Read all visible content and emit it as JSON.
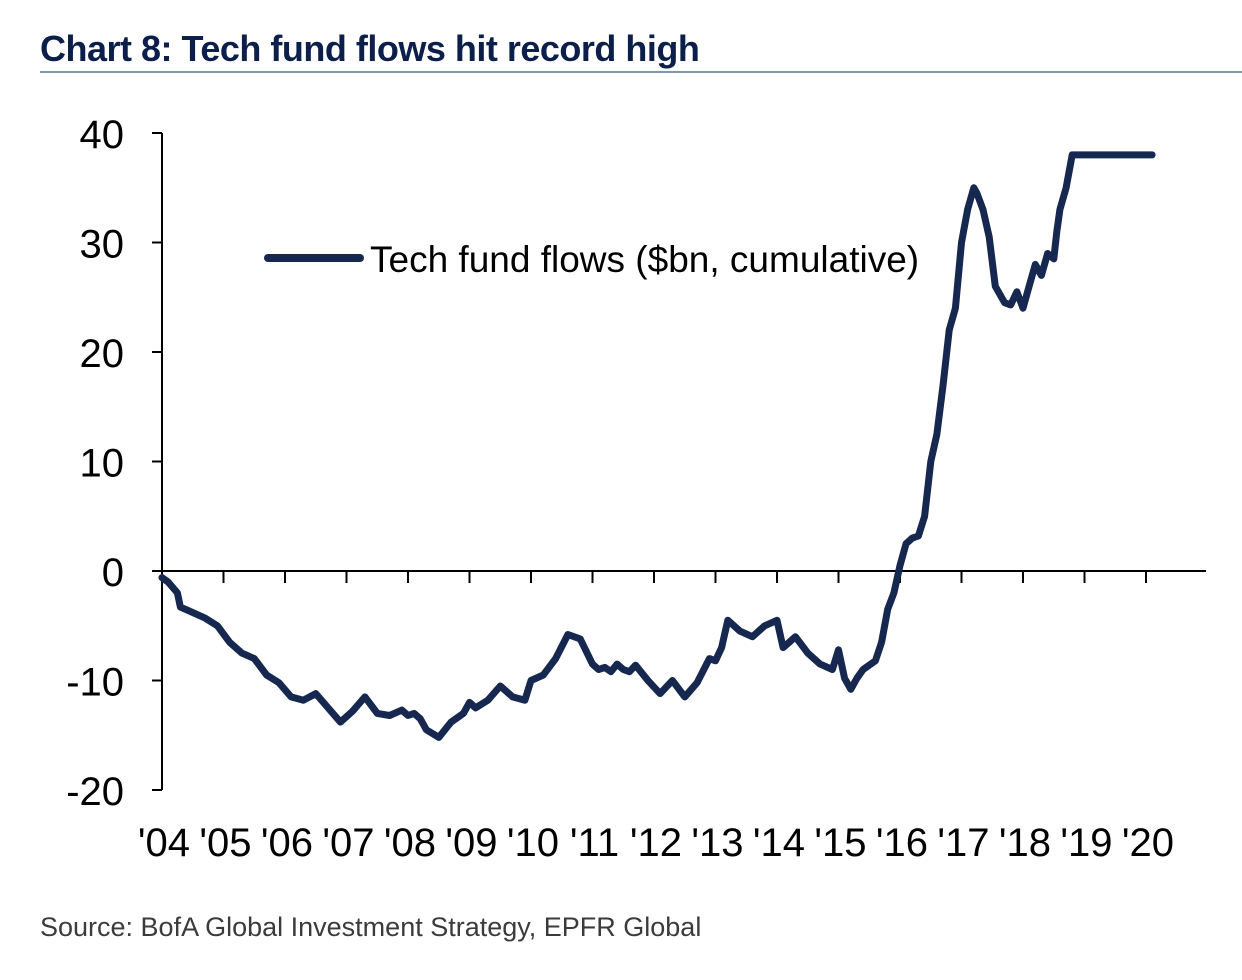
{
  "header": {
    "title": "Chart 8: Tech fund flows hit record high"
  },
  "footer": {
    "source": "Source: BofA Global Investment Strategy, EPFR Global"
  },
  "chart_data": {
    "type": "line",
    "title": "Chart 8: Tech fund flows hit record high",
    "xlabel": "",
    "ylabel": "",
    "ylim": [
      -20,
      40
    ],
    "xlim": [
      2004.0,
      2021.0
    ],
    "yticks": [
      "40",
      "30",
      "20",
      "10",
      "0",
      "-10",
      "-20"
    ],
    "xticks": [
      "'04",
      "'05",
      "'06",
      "'07",
      "'08",
      "'09",
      "'10",
      "'11",
      "'12",
      "'13",
      "'14",
      "'15",
      "'16",
      "'17",
      "'18",
      "'19",
      "'20"
    ],
    "legend_position": "top-left",
    "grid": false,
    "line_color": "#16284f",
    "series": [
      {
        "name": "Tech fund flows ($bn, cumulative)",
        "x": [
          2004.0,
          2004.1,
          2004.25,
          2004.3,
          2004.5,
          2004.7,
          2004.9,
          2005.1,
          2005.3,
          2005.5,
          2005.7,
          2005.9,
          2006.1,
          2006.3,
          2006.5,
          2006.7,
          2006.9,
          2007.1,
          2007.3,
          2007.5,
          2007.7,
          2007.9,
          2008.0,
          2008.1,
          2008.2,
          2008.3,
          2008.5,
          2008.7,
          2008.9,
          2009.0,
          2009.1,
          2009.3,
          2009.5,
          2009.7,
          2009.9,
          2010.0,
          2010.2,
          2010.4,
          2010.6,
          2010.8,
          2011.0,
          2011.1,
          2011.2,
          2011.3,
          2011.4,
          2011.5,
          2011.6,
          2011.7,
          2011.9,
          2012.1,
          2012.3,
          2012.5,
          2012.7,
          2012.9,
          2013.0,
          2013.1,
          2013.2,
          2013.4,
          2013.6,
          2013.8,
          2014.0,
          2014.1,
          2014.2,
          2014.3,
          2014.5,
          2014.7,
          2014.9,
          2015.0,
          2015.1,
          2015.2,
          2015.3,
          2015.4,
          2015.6,
          2015.7,
          2015.8,
          2015.9,
          2016.0,
          2016.1,
          2016.2,
          2016.3,
          2016.4,
          2016.5,
          2016.6,
          2016.7,
          2016.8,
          2016.9,
          2017.0,
          2017.1,
          2017.2,
          2017.25,
          2017.35,
          2017.45,
          2017.55,
          2017.7,
          2017.8,
          2017.9,
          2018.0,
          2018.1,
          2018.2,
          2018.3,
          2018.4,
          2018.5,
          2018.55,
          2018.6,
          2018.7,
          2018.8,
          2018.9,
          2019.0,
          2019.1,
          2019.15,
          2019.2,
          2019.3,
          2019.4,
          2019.5,
          2019.55,
          2019.6,
          2019.7,
          2019.8,
          2019.9,
          2020.0,
          2020.05,
          2020.1
        ],
        "values": [
          -0.6,
          -1.0,
          -2.0,
          -3.3,
          -3.8,
          -4.3,
          -5.0,
          -6.5,
          -7.5,
          -8.0,
          -9.5,
          -10.2,
          -11.5,
          -11.8,
          -11.2,
          -12.5,
          -13.8,
          -12.8,
          -11.5,
          -13.0,
          -13.2,
          -12.7,
          -13.2,
          -13.0,
          -13.5,
          -14.5,
          -15.2,
          -13.8,
          -13.0,
          -12.0,
          -12.5,
          -11.8,
          -10.5,
          -11.5,
          -11.8,
          -10.0,
          -9.5,
          -8.0,
          -5.8,
          -6.2,
          -8.5,
          -9.0,
          -8.8,
          -9.2,
          -8.5,
          -9.0,
          -9.2,
          -8.6,
          -10.0,
          -11.2,
          -10.0,
          -11.5,
          -10.2,
          -8.0,
          -8.2,
          -7.0,
          -4.5,
          -5.5,
          -6.0,
          -5.0,
          -4.5,
          -7.0,
          -6.5,
          -6.0,
          -7.5,
          -8.5,
          -9.0,
          -7.2,
          -9.8,
          -10.8,
          -9.8,
          -9.0,
          -8.2,
          -6.5,
          -3.5,
          -2.0,
          0.5,
          2.5,
          3.0,
          3.2,
          5.0,
          10.0,
          12.5,
          17.0,
          22.0,
          24.0,
          30.0,
          33.0,
          35.0,
          34.5,
          33.0,
          30.5,
          26.0,
          24.5,
          24.3,
          25.5,
          24.0,
          26.0,
          28.0,
          27.0,
          29.0,
          28.5,
          31.0,
          33.0,
          35.0,
          38.0,
          38.0,
          38.0,
          38.0,
          38.0,
          38.0,
          38.0,
          38.0,
          38.0,
          38.0,
          38.0,
          38.0,
          38.0,
          38.0,
          38.0,
          38.0,
          38.0
        ]
      }
    ]
  }
}
